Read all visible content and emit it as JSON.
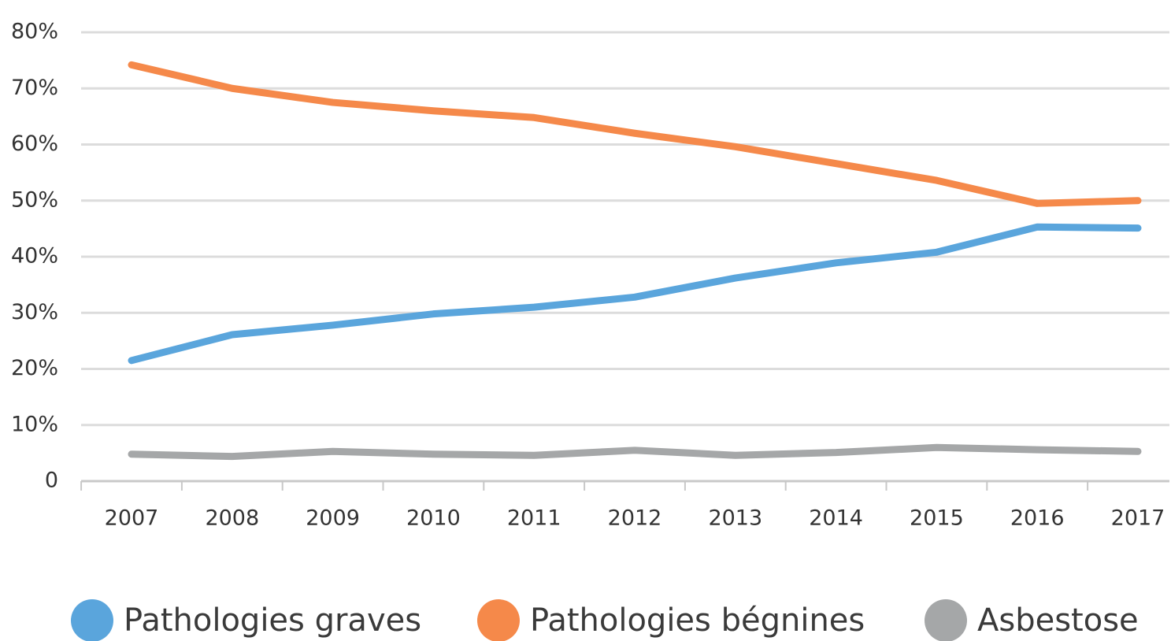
{
  "chart_data": {
    "type": "line",
    "categories": [
      "2007",
      "2008",
      "2009",
      "2010",
      "2011",
      "2012",
      "2013",
      "2014",
      "2015",
      "2016",
      "2017"
    ],
    "series": [
      {
        "name": "Pathologies graves",
        "color": "#5aa5dc",
        "values": [
          21.5,
          26.1,
          27.8,
          29.8,
          31.0,
          32.8,
          36.2,
          38.9,
          40.8,
          45.3,
          45.1
        ]
      },
      {
        "name": "Pathologies bégnines",
        "color": "#f5894a",
        "values": [
          74.2,
          70.0,
          67.5,
          66.0,
          64.8,
          62.0,
          59.6,
          56.6,
          53.6,
          49.5,
          50.0
        ]
      },
      {
        "name": "Asbestose",
        "color": "#a5a7a8",
        "values": [
          4.8,
          4.4,
          5.3,
          4.8,
          4.6,
          5.5,
          4.6,
          5.1,
          6.0,
          5.6,
          5.3
        ]
      }
    ],
    "ylim": [
      0,
      80
    ],
    "yticks": [
      0,
      {
        "value": 10,
        "label": "10%"
      },
      {
        "value": 20,
        "label": "20%"
      },
      {
        "value": 30,
        "label": "30%"
      },
      {
        "value": 40,
        "label": "40%"
      },
      {
        "value": 50,
        "label": "50%"
      },
      {
        "value": 60,
        "label": "60%"
      },
      {
        "value": 70,
        "label": "70%"
      },
      {
        "value": 80,
        "label": "80%"
      }
    ],
    "grid": true,
    "legend": "bottom"
  }
}
